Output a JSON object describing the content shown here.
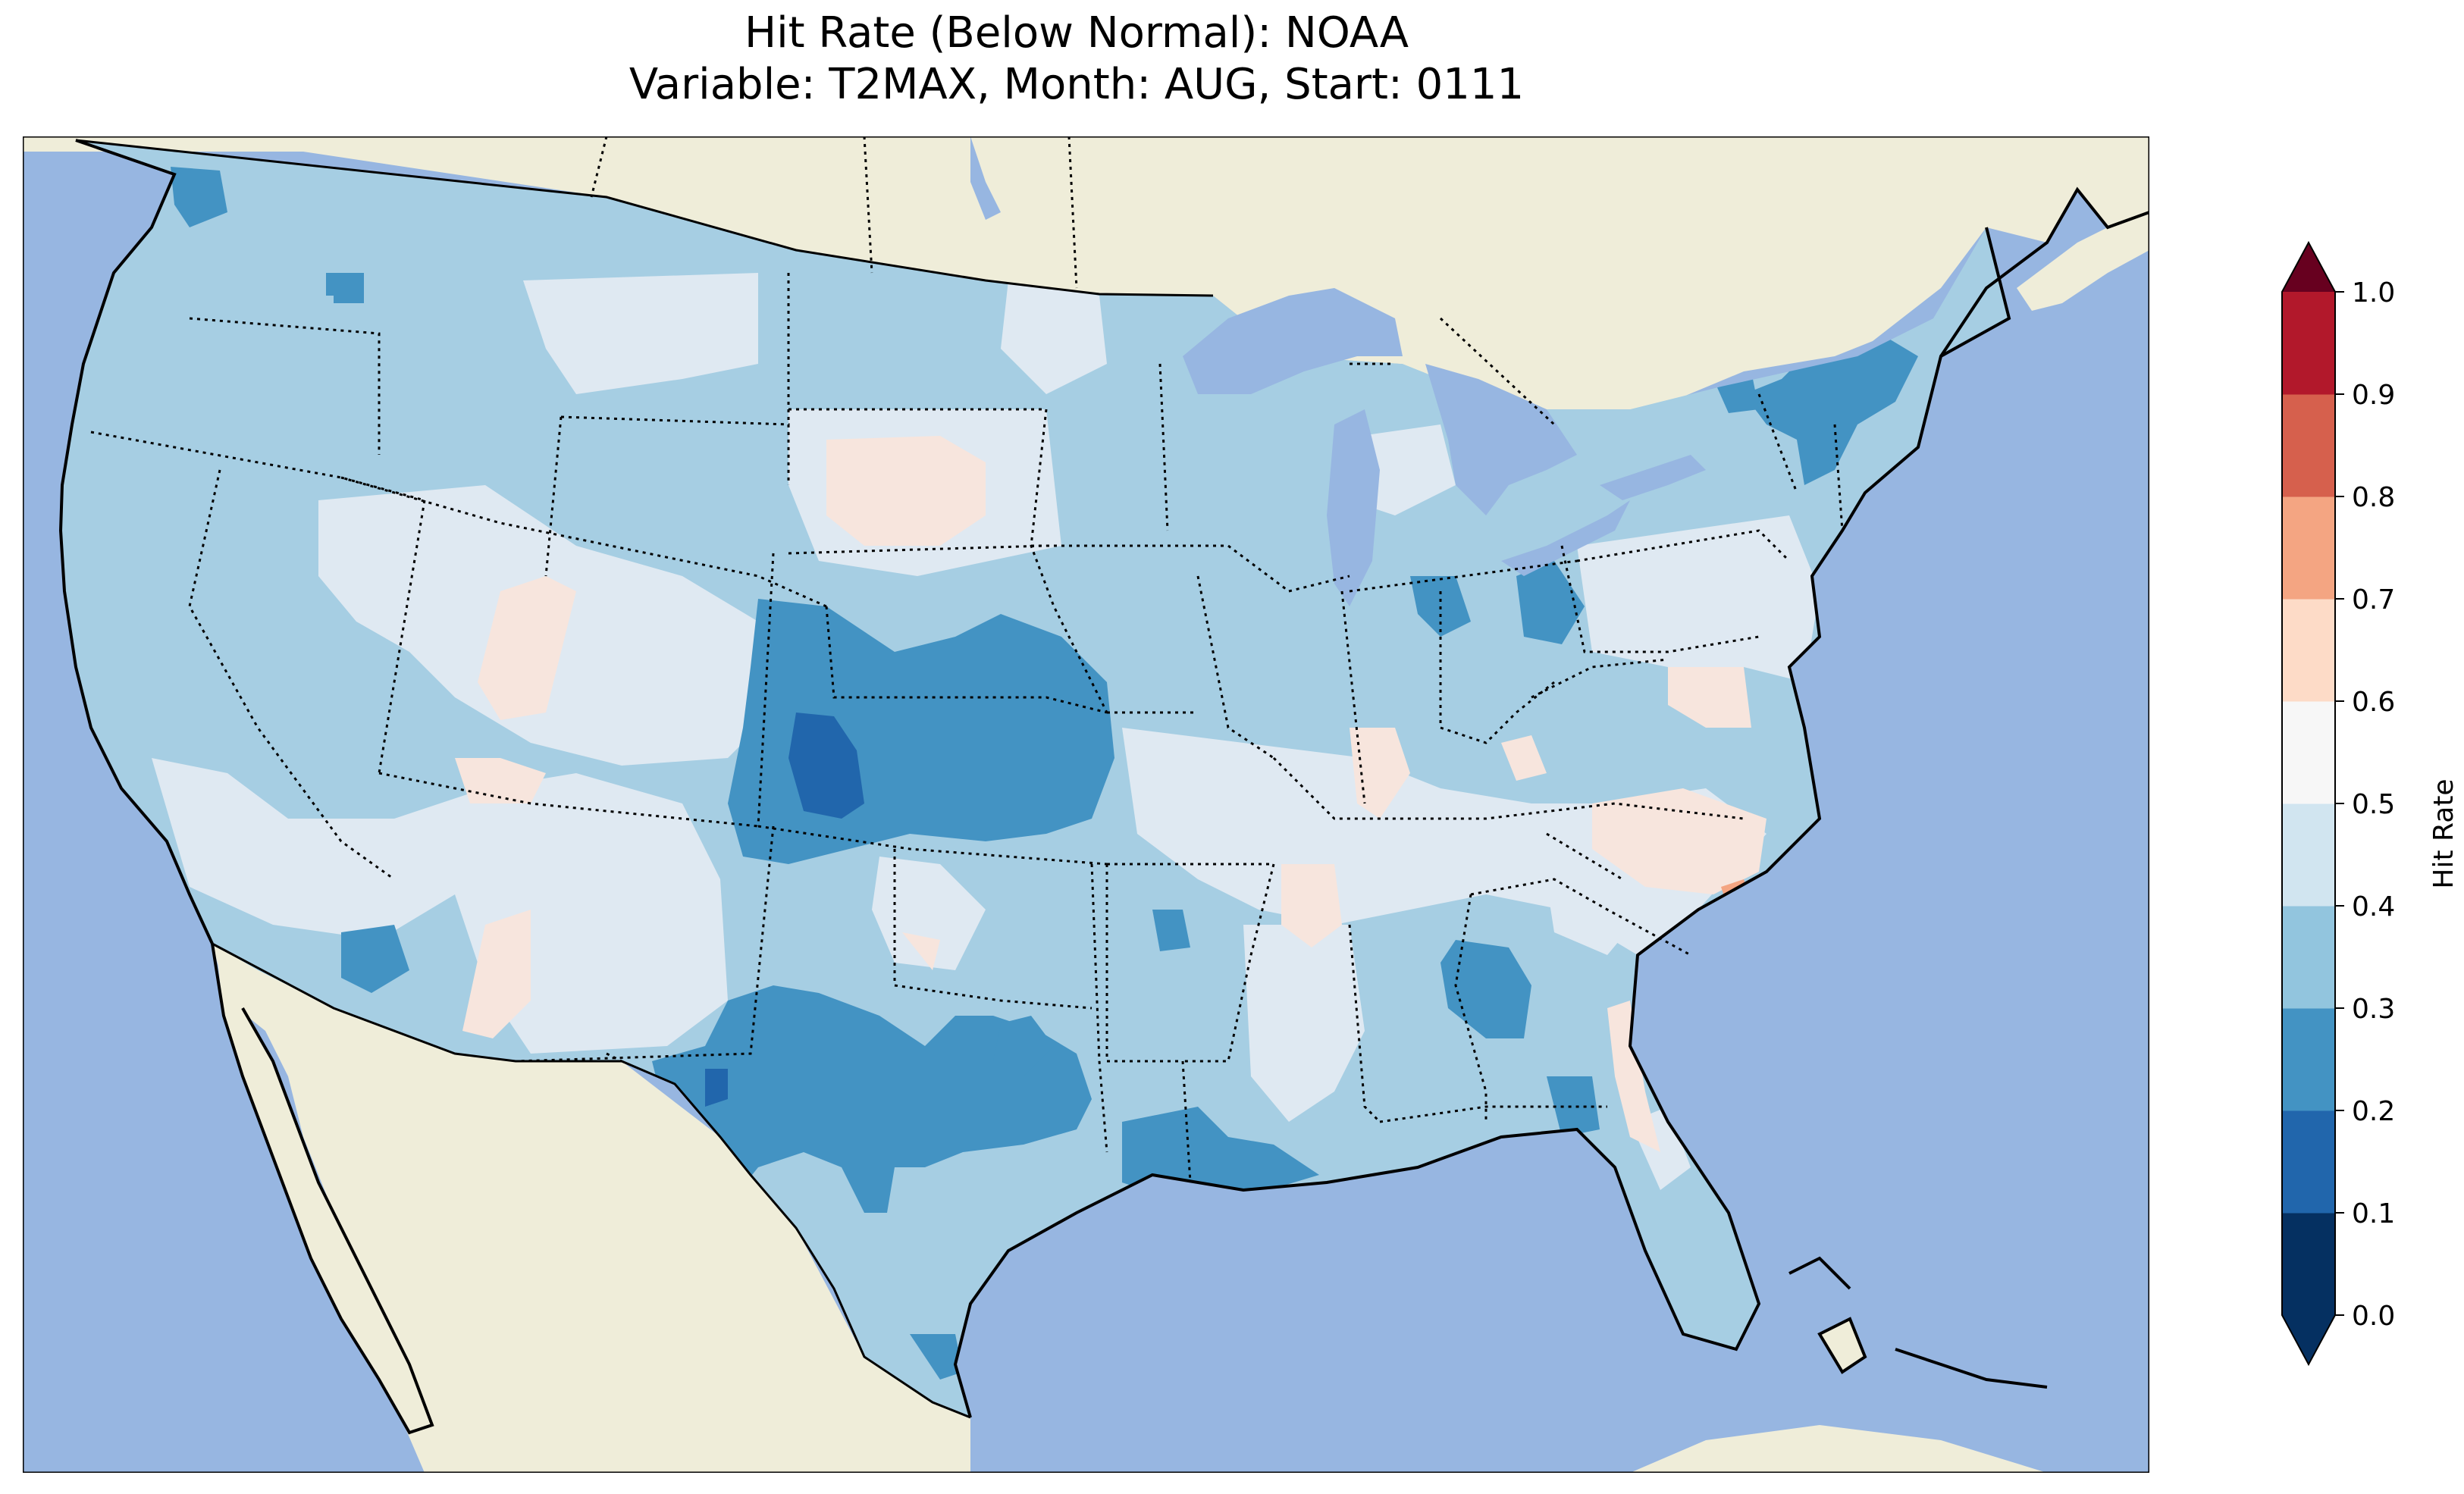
{
  "title_line1": "Hit Rate (Below Normal): NOAA",
  "title_line2": "Variable: T2MAX, Month: AUG, Start: 0111",
  "colorbar": {
    "label": "Hit Rate",
    "ticks": [
      "0.0",
      "0.1",
      "0.2",
      "0.3",
      "0.4",
      "0.5",
      "0.6",
      "0.7",
      "0.8",
      "0.9",
      "1.0"
    ],
    "colors": [
      "#053061",
      "#2166ac",
      "#4393c3",
      "#92c5de",
      "#d1e5f0",
      "#f7f7f7",
      "#fddbc7",
      "#f4a582",
      "#d6604d",
      "#b2182b",
      "#67001f"
    ],
    "under_color": "#053061",
    "over_color": "#67001f"
  },
  "map": {
    "ocean_color": "#97b6e1",
    "land_color": "#efedd9",
    "lake_color": "#97b6e1",
    "class_colors": {
      "0.1-0.2": "#2166ac",
      "0.2-0.3": "#4393c3",
      "0.3-0.4": "#a6cee3",
      "0.4-0.5": "#dfe9f2",
      "0.5-0.6": "#f7e5dd",
      "0.6-0.7": "#f4a582"
    },
    "regions": [
      {
        "name": "conus-base",
        "class": "0.3-0.4"
      },
      {
        "name": "northern-plains-light",
        "class": "0.4-0.5"
      },
      {
        "name": "great-basin-light",
        "class": "0.4-0.5"
      },
      {
        "name": "southwest-light",
        "class": "0.4-0.5"
      },
      {
        "name": "mid-south-light",
        "class": "0.4-0.5"
      },
      {
        "name": "southeast-light",
        "class": "0.4-0.5"
      },
      {
        "name": "northeast-light",
        "class": "0.4-0.5"
      },
      {
        "name": "colorado-kansas-medium",
        "class": "0.2-0.3"
      },
      {
        "name": "colorado-core-dark",
        "class": "0.1-0.2"
      },
      {
        "name": "texas-medium",
        "class": "0.2-0.3"
      },
      {
        "name": "texas-core-dark",
        "class": "0.1-0.2"
      },
      {
        "name": "gulf-coast-medium",
        "class": "0.2-0.3"
      },
      {
        "name": "alabama-medium",
        "class": "0.2-0.3"
      },
      {
        "name": "new-england-medium",
        "class": "0.2-0.3"
      },
      {
        "name": "michigan-medium",
        "class": "0.2-0.3"
      },
      {
        "name": "washington-medium",
        "class": "0.2-0.3"
      },
      {
        "name": "arizona-medium",
        "class": "0.2-0.3"
      },
      {
        "name": "dakota-pink",
        "class": "0.5-0.6"
      },
      {
        "name": "utah-pink",
        "class": "0.5-0.6"
      },
      {
        "name": "tennessee-pink",
        "class": "0.5-0.6"
      },
      {
        "name": "carolina-pink",
        "class": "0.5-0.6"
      },
      {
        "name": "virginia-pink",
        "class": "0.5-0.6"
      },
      {
        "name": "arizona-pink",
        "class": "0.5-0.6"
      },
      {
        "name": "georgia-coast-pink",
        "class": "0.5-0.6"
      },
      {
        "name": "carolina-coast-orange",
        "class": "0.6-0.7"
      }
    ]
  }
}
